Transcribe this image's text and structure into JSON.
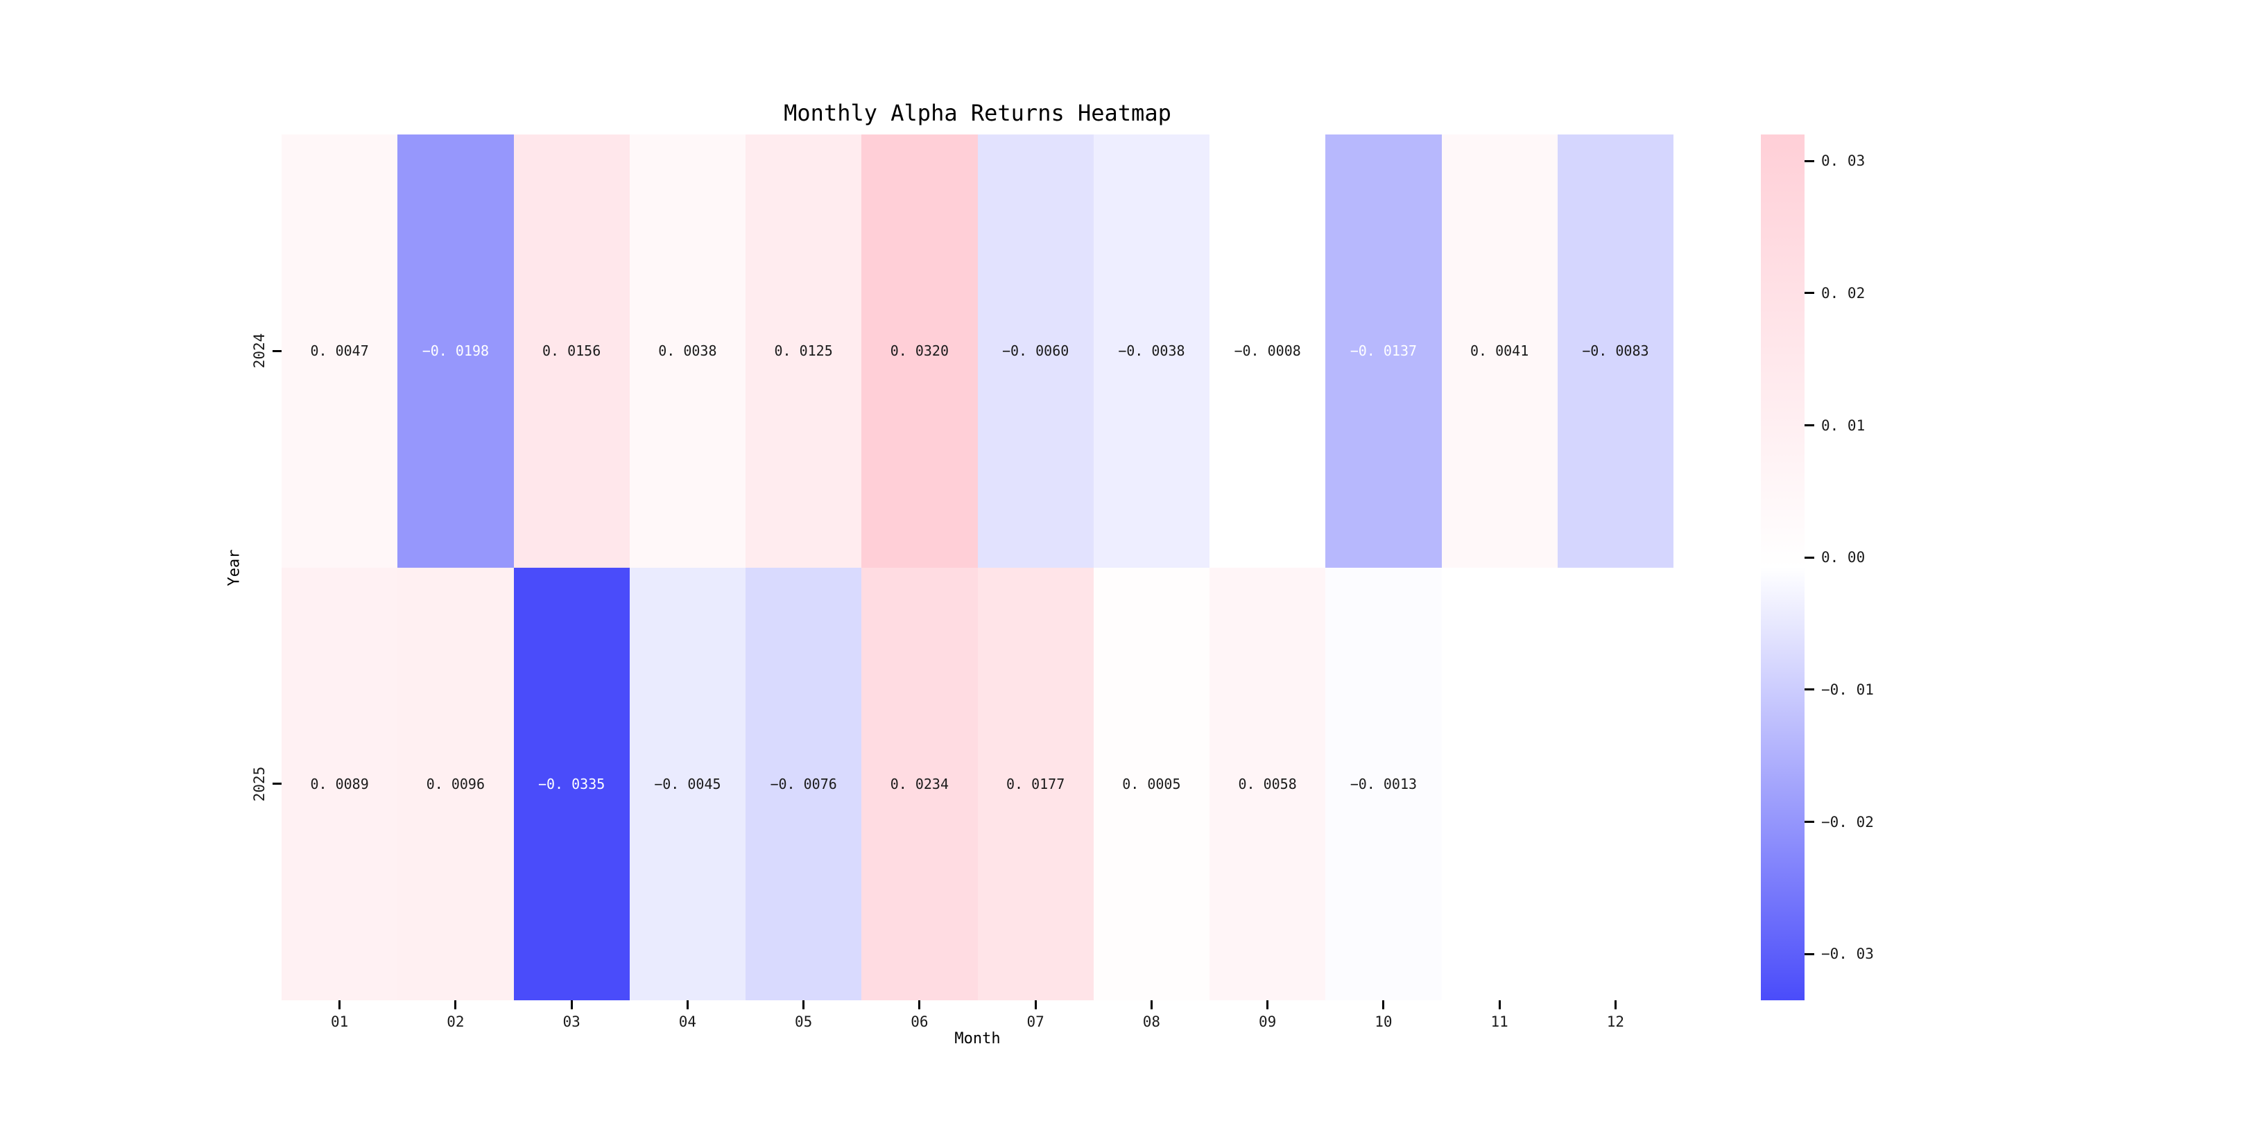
{
  "chart_data": {
    "type": "heatmap",
    "title": "Monthly Alpha Returns Heatmap",
    "xlabel": "Month",
    "ylabel": "Year",
    "columns": [
      "01",
      "02",
      "03",
      "04",
      "05",
      "06",
      "07",
      "08",
      "09",
      "10",
      "11",
      "12"
    ],
    "rows": [
      "2024",
      "2025"
    ],
    "values": [
      [
        0.0047,
        -0.0198,
        0.0156,
        0.0038,
        0.0125,
        0.032,
        -0.006,
        -0.0038,
        -0.0008,
        -0.0137,
        0.0041,
        -0.0083
      ],
      [
        0.0089,
        0.0096,
        -0.0335,
        -0.0045,
        -0.0076,
        0.0234,
        0.0177,
        0.0005,
        0.0058,
        -0.0013,
        null,
        null
      ]
    ],
    "vmin": -0.0335,
    "vmax": 0.032,
    "colormap": {
      "negative_end": "#4a4cfa",
      "center": "#ffffff",
      "positive_end": "#ffcfd7"
    },
    "colorbar_ticks": [
      0.03,
      0.02,
      0.01,
      0.0,
      -0.01,
      -0.02,
      -0.03
    ],
    "annotation_decimals": 4,
    "annotation_white_threshold": -0.01,
    "annotation_black_color": "#1a1a1a",
    "annotation_white_color": "#ffffff",
    "background": "#ffffff",
    "grid": false,
    "legend_position": "right-colorbar"
  }
}
